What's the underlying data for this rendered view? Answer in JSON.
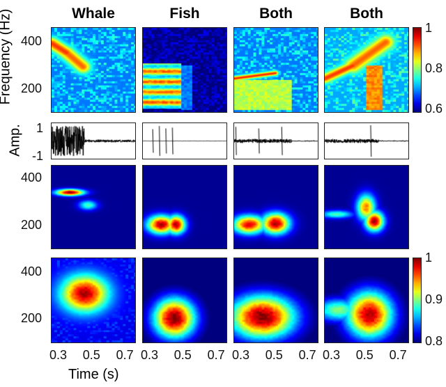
{
  "titles": [
    "Whale",
    "Fish",
    "Both",
    "Both"
  ],
  "ylabel": "Frequency (Hz)",
  "amp_label": "Amp.",
  "xlabel": "Time (s)",
  "freq_ticks": [
    "400",
    "200"
  ],
  "amp_ticks": [
    "1",
    "-1"
  ],
  "time_ticks": [
    "0.3",
    "0.5",
    "0.7"
  ],
  "colorbar_top": {
    "ticks": [
      "1",
      "0.8",
      "0.6"
    ],
    "range": [
      0.55,
      1
    ]
  },
  "colorbar_bottom": {
    "ticks": [
      "1",
      "0.9",
      "0.8"
    ],
    "range": [
      0.8,
      1
    ]
  },
  "chart_data": {
    "type": "heatmap",
    "xlabel": "Time (s)",
    "ylabel": "Frequency (Hz)",
    "xlim": [
      0.25,
      0.76
    ],
    "ylim": [
      100,
      460
    ],
    "rows": [
      {
        "name": "spectrogram",
        "range": [
          0.55,
          1
        ],
        "panels": [
          {
            "bg": 0.66,
            "noise": 0.08,
            "segs": [
              [
                0.25,
                395,
                0.34,
                355,
                0.92,
                18
              ],
              [
                0.34,
                355,
                0.44,
                295,
                0.9,
                20
              ]
            ],
            "boxes": []
          },
          {
            "bg": 0.56,
            "noise": 0.04,
            "segs": [],
            "boxes": [
              [
                0.25,
                0.48,
                115,
                310,
                0.8,
                1
              ],
              [
                0.48,
                0.55,
                110,
                300,
                0.66,
                0
              ]
            ]
          },
          {
            "bg": 0.66,
            "noise": 0.08,
            "segs": [
              [
                0.25,
                245,
                0.5,
                268,
                0.93,
                7
              ]
            ],
            "boxes": [
              [
                0.25,
                0.6,
                110,
                240,
                0.8,
                0
              ]
            ]
          },
          {
            "bg": 0.68,
            "noise": 0.08,
            "segs": [
              [
                0.25,
                245,
                0.42,
                300,
                0.92,
                14
              ],
              [
                0.42,
                300,
                0.62,
                400,
                0.9,
                22
              ]
            ],
            "boxes": [
              [
                0.5,
                0.6,
                110,
                300,
                0.88,
                0
              ]
            ]
          }
        ]
      },
      {
        "name": "model-a",
        "range": [
          0,
          1
        ],
        "panels": [
          {
            "bg": 0.02,
            "noise": 0.0,
            "blobs": [
              [
                0.36,
                345,
                0.06,
                10,
                1.0
              ],
              [
                0.47,
                290,
                0.04,
                15,
                0.45
              ]
            ]
          },
          {
            "bg": 0.02,
            "noise": 0.0,
            "blobs": [
              [
                0.36,
                205,
                0.06,
                28,
                0.95
              ],
              [
                0.45,
                205,
                0.04,
                28,
                0.95
              ]
            ]
          },
          {
            "bg": 0.02,
            "noise": 0.0,
            "blobs": [
              [
                0.34,
                205,
                0.07,
                28,
                0.9
              ],
              [
                0.5,
                210,
                0.06,
                32,
                0.95
              ]
            ]
          },
          {
            "bg": 0.02,
            "noise": 0.0,
            "blobs": [
              [
                0.32,
                250,
                0.07,
                12,
                0.45
              ],
              [
                0.5,
                280,
                0.04,
                40,
                0.75
              ],
              [
                0.55,
                220,
                0.04,
                30,
                0.95
              ]
            ]
          }
        ]
      },
      {
        "name": "model-b",
        "range": [
          0.8,
          1
        ],
        "panels": [
          {
            "bg": 0.82,
            "noise": 0.02,
            "blobs": [
              [
                0.45,
                310,
                0.1,
                55,
                0.99
              ]
            ]
          },
          {
            "bg": 0.79,
            "noise": 0.0,
            "blobs": [
              [
                0.44,
                205,
                0.09,
                60,
                1.0
              ]
            ]
          },
          {
            "bg": 0.79,
            "noise": 0.0,
            "blobs": [
              [
                0.42,
                210,
                0.14,
                65,
                1.0
              ]
            ]
          },
          {
            "bg": 0.79,
            "noise": 0.0,
            "blobs": [
              [
                0.52,
                220,
                0.1,
                70,
                0.99
              ],
              [
                0.33,
                240,
                0.1,
                35,
                0.9
              ]
            ]
          }
        ]
      }
    ],
    "amplitude": {
      "ylim": [
        -1,
        1
      ],
      "panels": [
        {
          "bursts": [
            [
              0.25,
              0.45,
              0.95
            ],
            [
              0.45,
              0.76,
              0.08
            ]
          ],
          "spikes": []
        },
        {
          "bursts": [
            [
              0.25,
              0.76,
              0.01
            ]
          ],
          "spikes": [
            [
              0.31,
              0.75
            ],
            [
              0.35,
              0.95
            ],
            [
              0.39,
              0.8
            ],
            [
              0.43,
              0.85
            ]
          ]
        },
        {
          "bursts": [
            [
              0.25,
              0.6,
              0.12
            ],
            [
              0.6,
              0.76,
              0.03
            ]
          ],
          "spikes": [
            [
              0.26,
              0.9
            ],
            [
              0.4,
              0.8
            ],
            [
              0.54,
              0.9
            ]
          ]
        },
        {
          "bursts": [
            [
              0.25,
              0.58,
              0.12
            ],
            [
              0.58,
              0.76,
              0.03
            ]
          ],
          "spikes": [
            [
              0.53,
              1.0
            ]
          ]
        }
      ]
    }
  }
}
